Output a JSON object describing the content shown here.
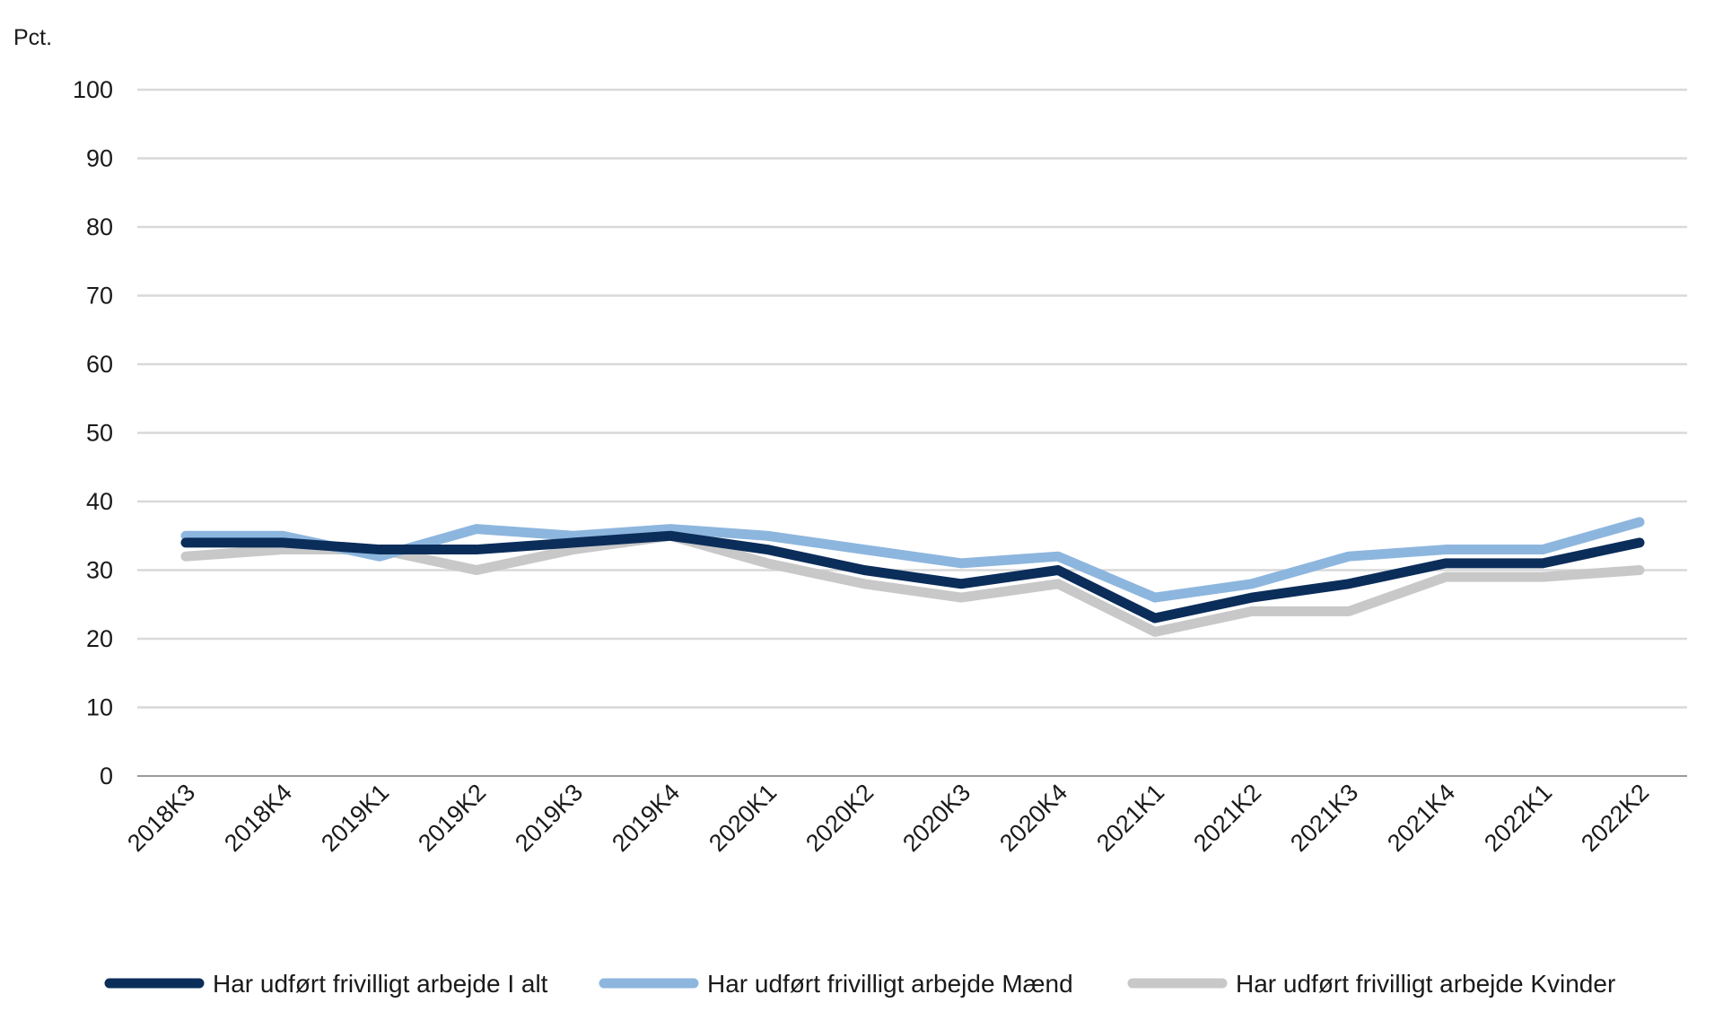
{
  "chart_data": {
    "type": "line",
    "ylabel": "Pct.",
    "xlabel": "",
    "ylim": [
      0,
      100
    ],
    "yticks": [
      0,
      10,
      20,
      30,
      40,
      50,
      60,
      70,
      80,
      90,
      100
    ],
    "grid": true,
    "legend_position": "bottom",
    "categories": [
      "2018K3",
      "2018K4",
      "2019K1",
      "2019K2",
      "2019K3",
      "2019K4",
      "2020K1",
      "2020K2",
      "2020K3",
      "2020K4",
      "2021K1",
      "2021K2",
      "2021K3",
      "2021K4",
      "2022K1",
      "2022K2"
    ],
    "series": [
      {
        "name": "Har udført frivilligt arbejde I alt",
        "color": "#0b2d5a",
        "values": [
          34,
          34,
          33,
          33,
          34,
          35,
          33,
          30,
          28,
          30,
          23,
          26,
          28,
          31,
          31,
          34
        ]
      },
      {
        "name": "Har udført frivilligt arbejde Mænd",
        "color": "#8db6de",
        "values": [
          35,
          35,
          32,
          36,
          35,
          36,
          35,
          33,
          31,
          32,
          26,
          28,
          32,
          33,
          33,
          37
        ]
      },
      {
        "name": "Har udført frivilligt arbejde Kvinder",
        "color": "#c8c8c8",
        "values": [
          32,
          33,
          33,
          30,
          33,
          35,
          31,
          28,
          26,
          28,
          21,
          24,
          24,
          29,
          29,
          30
        ]
      }
    ]
  }
}
